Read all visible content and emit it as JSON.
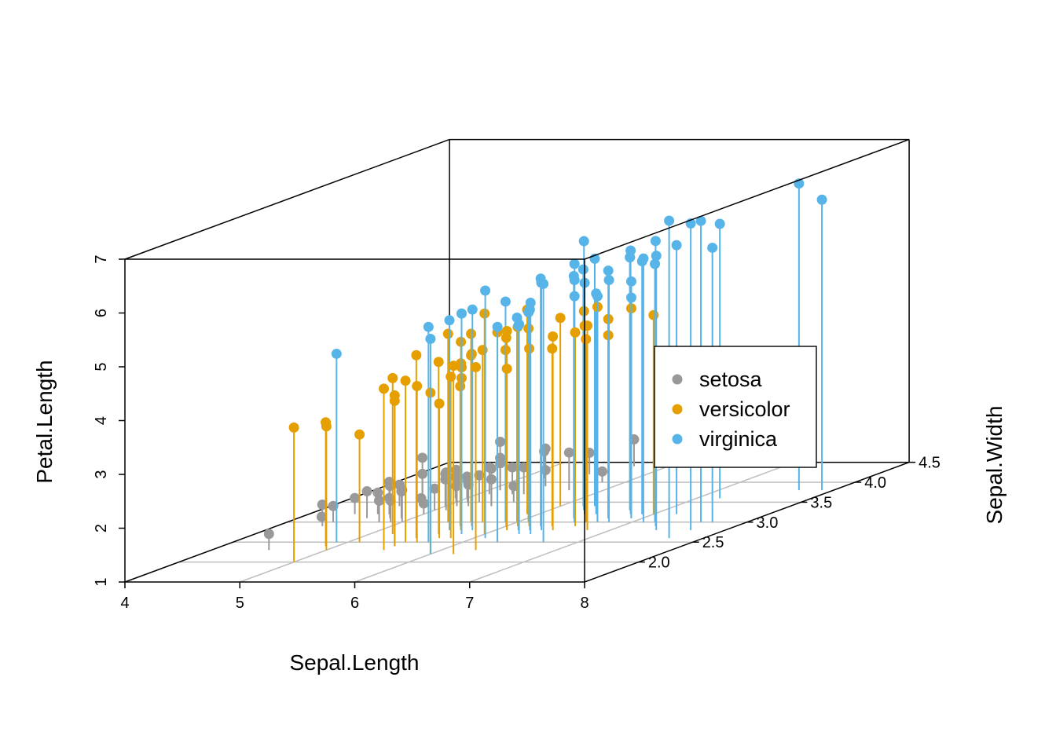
{
  "chart_data": {
    "type": "scatter",
    "subtype": "3d-scatter-with-drop-lines",
    "xlabel": "Sepal.Length",
    "ylabel": "Sepal.Width",
    "zlabel": "Petal.Length",
    "xlim": [
      4,
      8
    ],
    "ylim": [
      1.5,
      4.5
    ],
    "zlim": [
      1,
      7
    ],
    "x_ticks": [
      "4",
      "5",
      "6",
      "7",
      "8"
    ],
    "y_ticks": [
      "2.0",
      "2.5",
      "3.0",
      "3.5",
      "4.0",
      "4.5"
    ],
    "z_ticks": [
      "1",
      "2",
      "3",
      "4",
      "5",
      "6",
      "7"
    ],
    "grid": "floor",
    "legend_position": "right",
    "series": [
      {
        "name": "setosa",
        "color": "#999999",
        "points": [
          [
            5.1,
            3.5,
            1.4
          ],
          [
            4.9,
            3.0,
            1.4
          ],
          [
            4.7,
            3.2,
            1.3
          ],
          [
            4.6,
            3.1,
            1.5
          ],
          [
            5.0,
            3.6,
            1.4
          ],
          [
            5.4,
            3.9,
            1.7
          ],
          [
            4.6,
            3.4,
            1.4
          ],
          [
            5.0,
            3.4,
            1.5
          ],
          [
            4.4,
            2.9,
            1.4
          ],
          [
            4.9,
            3.1,
            1.5
          ],
          [
            5.4,
            3.7,
            1.5
          ],
          [
            4.8,
            3.4,
            1.6
          ],
          [
            4.8,
            3.0,
            1.4
          ],
          [
            4.3,
            3.0,
            1.1
          ],
          [
            5.8,
            4.0,
            1.2
          ],
          [
            5.7,
            4.4,
            1.5
          ],
          [
            5.4,
            3.9,
            1.3
          ],
          [
            5.1,
            3.5,
            1.4
          ],
          [
            5.7,
            3.8,
            1.7
          ],
          [
            5.1,
            3.8,
            1.5
          ],
          [
            5.4,
            3.4,
            1.7
          ],
          [
            5.1,
            3.7,
            1.5
          ],
          [
            4.6,
            3.6,
            1.0
          ],
          [
            5.1,
            3.3,
            1.7
          ],
          [
            4.8,
            3.4,
            1.9
          ],
          [
            5.0,
            3.0,
            1.6
          ],
          [
            5.0,
            3.4,
            1.6
          ],
          [
            5.2,
            3.5,
            1.5
          ],
          [
            5.2,
            3.4,
            1.4
          ],
          [
            4.7,
            3.2,
            1.6
          ],
          [
            4.8,
            3.1,
            1.6
          ],
          [
            5.4,
            3.4,
            1.5
          ],
          [
            5.2,
            4.1,
            1.5
          ],
          [
            5.5,
            4.2,
            1.4
          ],
          [
            4.9,
            3.1,
            1.5
          ],
          [
            5.0,
            3.2,
            1.2
          ],
          [
            5.5,
            3.5,
            1.3
          ],
          [
            4.9,
            3.6,
            1.4
          ],
          [
            4.4,
            3.0,
            1.3
          ],
          [
            5.1,
            3.4,
            1.5
          ],
          [
            5.0,
            3.5,
            1.3
          ],
          [
            4.5,
            2.3,
            1.3
          ],
          [
            4.4,
            3.2,
            1.3
          ],
          [
            5.0,
            3.5,
            1.6
          ],
          [
            5.1,
            3.8,
            1.9
          ],
          [
            4.8,
            3.0,
            1.4
          ],
          [
            5.1,
            3.8,
            1.6
          ],
          [
            4.6,
            3.2,
            1.4
          ],
          [
            5.3,
            3.7,
            1.5
          ],
          [
            5.0,
            3.3,
            1.4
          ]
        ]
      },
      {
        "name": "versicolor",
        "color": "#E69F00",
        "points": [
          [
            7.0,
            3.2,
            4.7
          ],
          [
            6.4,
            3.2,
            4.5
          ],
          [
            6.9,
            3.1,
            4.9
          ],
          [
            5.5,
            2.3,
            4.0
          ],
          [
            6.5,
            2.8,
            4.6
          ],
          [
            5.7,
            2.8,
            4.5
          ],
          [
            6.3,
            3.3,
            4.7
          ],
          [
            4.9,
            2.4,
            3.3
          ],
          [
            6.6,
            2.9,
            4.6
          ],
          [
            5.2,
            2.7,
            3.9
          ],
          [
            5.0,
            2.0,
            3.5
          ],
          [
            5.9,
            3.0,
            4.2
          ],
          [
            6.0,
            2.2,
            4.0
          ],
          [
            6.1,
            2.9,
            4.7
          ],
          [
            5.6,
            2.9,
            3.6
          ],
          [
            6.7,
            3.1,
            4.4
          ],
          [
            5.6,
            3.0,
            4.5
          ],
          [
            5.8,
            2.7,
            4.1
          ],
          [
            6.2,
            2.2,
            4.5
          ],
          [
            5.6,
            2.5,
            3.9
          ],
          [
            5.9,
            3.2,
            4.8
          ],
          [
            6.1,
            2.8,
            4.0
          ],
          [
            6.3,
            2.5,
            4.9
          ],
          [
            6.1,
            2.8,
            4.7
          ],
          [
            6.4,
            2.9,
            4.3
          ],
          [
            6.6,
            3.0,
            4.4
          ],
          [
            6.8,
            2.8,
            4.8
          ],
          [
            6.7,
            3.0,
            5.0
          ],
          [
            6.0,
            2.9,
            4.5
          ],
          [
            5.7,
            2.6,
            3.5
          ],
          [
            5.5,
            2.4,
            3.8
          ],
          [
            5.5,
            2.4,
            3.7
          ],
          [
            5.8,
            2.7,
            3.9
          ],
          [
            6.0,
            2.7,
            5.1
          ],
          [
            5.4,
            3.0,
            4.5
          ],
          [
            6.0,
            3.4,
            4.5
          ],
          [
            6.7,
            3.1,
            4.7
          ],
          [
            6.3,
            2.3,
            4.4
          ],
          [
            5.6,
            3.0,
            4.1
          ],
          [
            5.5,
            2.5,
            4.0
          ],
          [
            5.5,
            2.6,
            4.4
          ],
          [
            6.1,
            3.0,
            4.6
          ],
          [
            5.8,
            2.6,
            4.0
          ],
          [
            5.0,
            2.3,
            3.3
          ],
          [
            5.6,
            2.7,
            4.2
          ],
          [
            5.7,
            3.0,
            4.2
          ],
          [
            5.7,
            2.9,
            4.2
          ],
          [
            6.2,
            2.9,
            4.3
          ],
          [
            5.1,
            2.5,
            3.0
          ],
          [
            5.7,
            2.8,
            4.1
          ]
        ]
      },
      {
        "name": "virginica",
        "color": "#56B4E9",
        "points": [
          [
            6.3,
            3.3,
            6.0
          ],
          [
            5.8,
            2.7,
            5.1
          ],
          [
            7.1,
            3.0,
            5.9
          ],
          [
            6.3,
            2.9,
            5.6
          ],
          [
            6.5,
            3.0,
            5.8
          ],
          [
            7.6,
            3.0,
            6.6
          ],
          [
            4.9,
            2.5,
            4.5
          ],
          [
            7.3,
            2.9,
            6.3
          ],
          [
            6.7,
            2.5,
            5.8
          ],
          [
            7.2,
            3.6,
            6.1
          ],
          [
            6.5,
            3.2,
            5.1
          ],
          [
            6.4,
            2.7,
            5.3
          ],
          [
            6.8,
            3.0,
            5.5
          ],
          [
            5.7,
            2.5,
            5.0
          ],
          [
            5.8,
            2.8,
            5.1
          ],
          [
            6.4,
            3.2,
            5.3
          ],
          [
            6.5,
            3.0,
            5.5
          ],
          [
            7.7,
            3.8,
            6.7
          ],
          [
            7.7,
            2.6,
            6.9
          ],
          [
            6.0,
            2.2,
            5.0
          ],
          [
            6.9,
            3.2,
            5.7
          ],
          [
            5.6,
            2.8,
            4.9
          ],
          [
            7.7,
            2.8,
            6.7
          ],
          [
            6.3,
            2.7,
            4.9
          ],
          [
            6.7,
            3.3,
            5.7
          ],
          [
            7.2,
            3.2,
            6.0
          ],
          [
            6.2,
            2.8,
            4.8
          ],
          [
            6.1,
            3.0,
            4.9
          ],
          [
            6.4,
            2.8,
            5.6
          ],
          [
            7.2,
            3.0,
            5.8
          ],
          [
            7.4,
            2.8,
            6.1
          ],
          [
            7.9,
            3.8,
            6.4
          ],
          [
            6.4,
            2.8,
            5.6
          ],
          [
            6.3,
            2.8,
            5.1
          ],
          [
            6.1,
            2.6,
            5.6
          ],
          [
            7.7,
            3.0,
            6.1
          ],
          [
            6.3,
            3.4,
            5.6
          ],
          [
            6.4,
            3.1,
            5.5
          ],
          [
            6.0,
            3.0,
            4.8
          ],
          [
            6.9,
            3.1,
            5.4
          ],
          [
            6.7,
            3.1,
            5.6
          ],
          [
            6.9,
            3.1,
            5.1
          ],
          [
            5.8,
            2.7,
            5.1
          ],
          [
            6.8,
            3.2,
            5.9
          ],
          [
            6.7,
            3.3,
            5.7
          ],
          [
            6.7,
            3.0,
            5.2
          ],
          [
            6.3,
            2.5,
            5.0
          ],
          [
            6.5,
            3.0,
            5.2
          ],
          [
            6.2,
            3.4,
            5.4
          ],
          [
            5.9,
            3.0,
            5.1
          ]
        ]
      }
    ]
  }
}
